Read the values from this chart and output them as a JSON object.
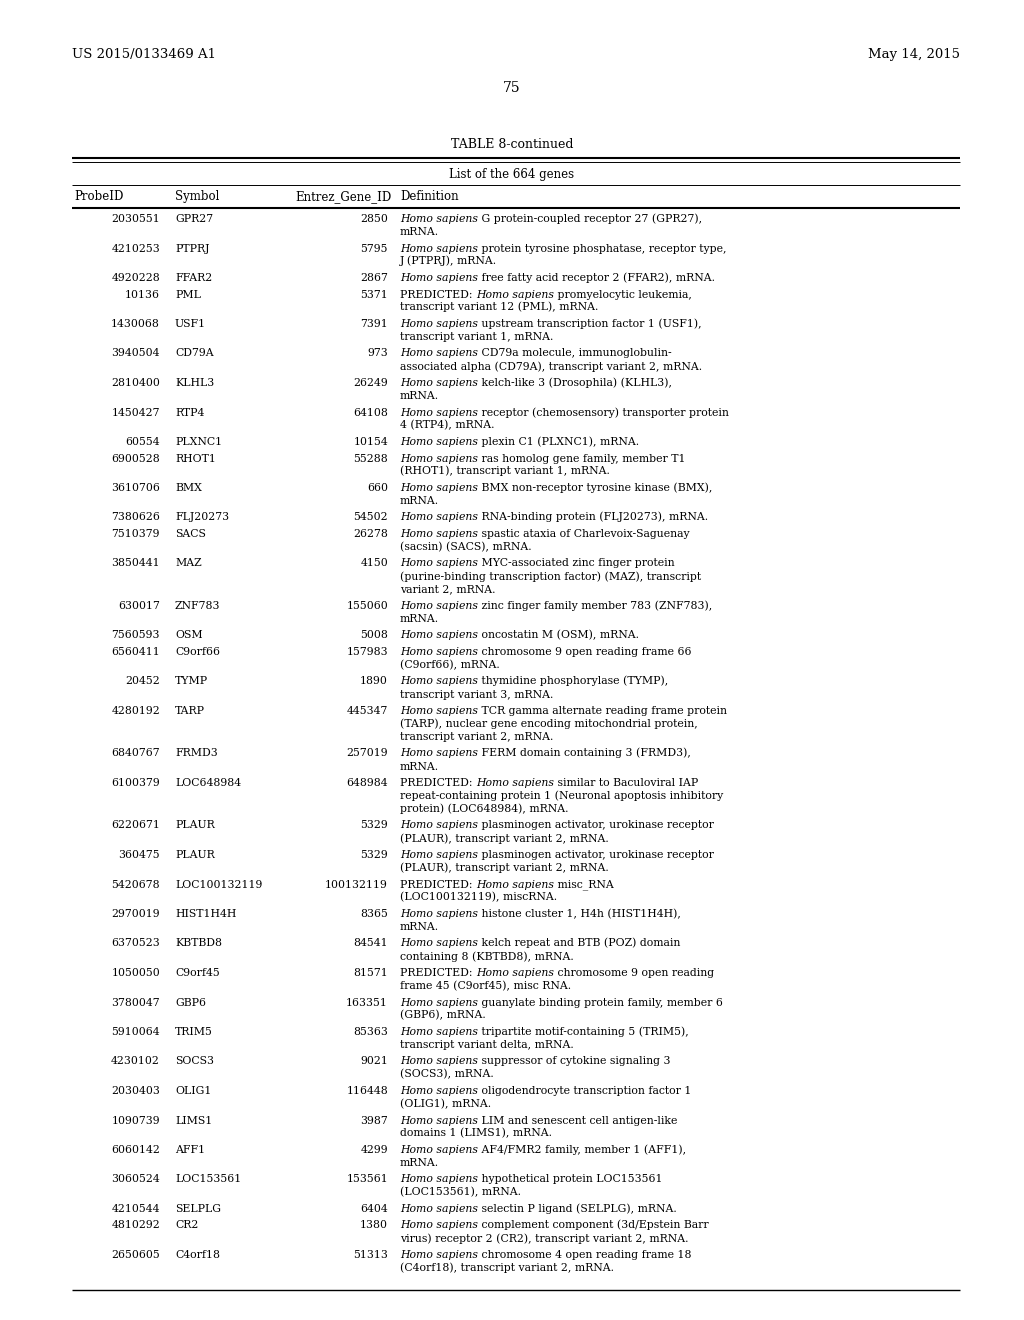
{
  "header_left": "US 2015/0133469 A1",
  "header_right": "May 14, 2015",
  "page_number": "75",
  "table_title": "TABLE 8-continued",
  "table_subtitle": "List of the 664 genes",
  "columns": [
    "ProbeID",
    "Symbol",
    "Entrez_Gene_ID",
    "Definition"
  ],
  "rows": [
    [
      "2030551",
      "GPR27",
      "2850",
      "Homo sapiens G protein-coupled receptor 27 (GPR27),\nmRNA."
    ],
    [
      "4210253",
      "PTPRJ",
      "5795",
      "Homo sapiens protein tyrosine phosphatase, receptor type,\nJ (PTPRJ), mRNA."
    ],
    [
      "4920228",
      "FFAR2",
      "2867",
      "Homo sapiens free fatty acid receptor 2 (FFAR2), mRNA."
    ],
    [
      "10136",
      "PML",
      "5371",
      "PREDICTED: Homo sapiens promyelocytic leukemia,\ntranscript variant 12 (PML), mRNA."
    ],
    [
      "1430068",
      "USF1",
      "7391",
      "Homo sapiens upstream transcription factor 1 (USF1),\ntranscript variant 1, mRNA."
    ],
    [
      "3940504",
      "CD79A",
      "973",
      "Homo sapiens CD79a molecule, immunoglobulin-\nassociated alpha (CD79A), transcript variant 2, mRNA."
    ],
    [
      "2810400",
      "KLHL3",
      "26249",
      "Homo sapiens kelch-like 3 (Drosophila) (KLHL3),\nmRNA."
    ],
    [
      "1450427",
      "RTP4",
      "64108",
      "Homo sapiens receptor (chemosensory) transporter protein\n4 (RTP4), mRNA."
    ],
    [
      "60554",
      "PLXNC1",
      "10154",
      "Homo sapiens plexin C1 (PLXNC1), mRNA."
    ],
    [
      "6900528",
      "RHOT1",
      "55288",
      "Homo sapiens ras homolog gene family, member T1\n(RHOT1), transcript variant 1, mRNA."
    ],
    [
      "3610706",
      "BMX",
      "660",
      "Homo sapiens BMX non-receptor tyrosine kinase (BMX),\nmRNA."
    ],
    [
      "7380626",
      "FLJ20273",
      "54502",
      "Homo sapiens RNA-binding protein (FLJ20273), mRNA."
    ],
    [
      "7510379",
      "SACS",
      "26278",
      "Homo sapiens spastic ataxia of Charlevoix-Saguenay\n(sacsin) (SACS), mRNA."
    ],
    [
      "3850441",
      "MAZ",
      "4150",
      "Homo sapiens MYC-associated zinc finger protein\n(purine-binding transcription factor) (MAZ), transcript\nvariant 2, mRNA."
    ],
    [
      "630017",
      "ZNF783",
      "155060",
      "Homo sapiens zinc finger family member 783 (ZNF783),\nmRNA."
    ],
    [
      "7560593",
      "OSM",
      "5008",
      "Homo sapiens oncostatin M (OSM), mRNA."
    ],
    [
      "6560411",
      "C9orf66",
      "157983",
      "Homo sapiens chromosome 9 open reading frame 66\n(C9orf66), mRNA."
    ],
    [
      "20452",
      "TYMP",
      "1890",
      "Homo sapiens thymidine phosphorylase (TYMP),\ntranscript variant 3, mRNA."
    ],
    [
      "4280192",
      "TARP",
      "445347",
      "Homo sapiens TCR gamma alternate reading frame protein\n(TARP), nuclear gene encoding mitochondrial protein,\ntranscript variant 2, mRNA."
    ],
    [
      "6840767",
      "FRMD3",
      "257019",
      "Homo sapiens FERM domain containing 3 (FRMD3),\nmRNA."
    ],
    [
      "6100379",
      "LOC648984",
      "648984",
      "PREDICTED: Homo sapiens similar to Baculoviral IAP\nrepeat-containing protein 1 (Neuronal apoptosis inhibitory\nprotein) (LOC648984), mRNA."
    ],
    [
      "6220671",
      "PLAUR",
      "5329",
      "Homo sapiens plasminogen activator, urokinase receptor\n(PLAUR), transcript variant 2, mRNA."
    ],
    [
      "360475",
      "PLAUR",
      "5329",
      "Homo sapiens plasminogen activator, urokinase receptor\n(PLAUR), transcript variant 2, mRNA."
    ],
    [
      "5420678",
      "LOC100132119",
      "100132119",
      "PREDICTED: Homo sapiens misc_RNA\n(LOC100132119), miscRNA."
    ],
    [
      "2970019",
      "HIST1H4H",
      "8365",
      "Homo sapiens histone cluster 1, H4h (HIST1H4H),\nmRNA."
    ],
    [
      "6370523",
      "KBTBD8",
      "84541",
      "Homo sapiens kelch repeat and BTB (POZ) domain\ncontaining 8 (KBTBD8), mRNA."
    ],
    [
      "1050050",
      "C9orf45",
      "81571",
      "PREDICTED: Homo sapiens chromosome 9 open reading\nframe 45 (C9orf45), misc RNA."
    ],
    [
      "3780047",
      "GBP6",
      "163351",
      "Homo sapiens guanylate binding protein family, member 6\n(GBP6), mRNA."
    ],
    [
      "5910064",
      "TRIM5",
      "85363",
      "Homo sapiens tripartite motif-containing 5 (TRIM5),\ntranscript variant delta, mRNA."
    ],
    [
      "4230102",
      "SOCS3",
      "9021",
      "Homo sapiens suppressor of cytokine signaling 3\n(SOCS3), mRNA."
    ],
    [
      "2030403",
      "OLIG1",
      "116448",
      "Homo sapiens oligodendrocyte transcription factor 1\n(OLIG1), mRNA."
    ],
    [
      "1090739",
      "LIMS1",
      "3987",
      "Homo sapiens LIM and senescent cell antigen-like\ndomains 1 (LIMS1), mRNA."
    ],
    [
      "6060142",
      "AFF1",
      "4299",
      "Homo sapiens AF4/FMR2 family, member 1 (AFF1),\nmRNA."
    ],
    [
      "3060524",
      "LOC153561",
      "153561",
      "Homo sapiens hypothetical protein LOC153561\n(LOC153561), mRNA."
    ],
    [
      "4210544",
      "SELPLG",
      "6404",
      "Homo sapiens selectin P ligand (SELPLG), mRNA."
    ],
    [
      "4810292",
      "CR2",
      "1380",
      "Homo sapiens complement component (3d/Epstein Barr\nvirus) receptor 2 (CR2), transcript variant 2, mRNA."
    ],
    [
      "2650605",
      "C4orf18",
      "51313",
      "Homo sapiens chromosome 4 open reading frame 18\n(C4orf18), transcript variant 2, mRNA."
    ]
  ],
  "background_color": "#ffffff",
  "text_color": "#000000"
}
